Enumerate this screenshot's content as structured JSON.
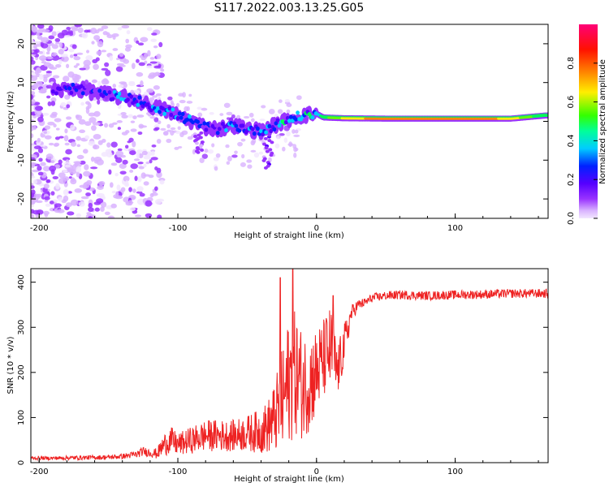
{
  "figure": {
    "title": "S117.2022.003.13.25.G05"
  },
  "chart_data": [
    {
      "type": "heatmap",
      "title": "S117.2022.003.13.25.G05",
      "xlabel": "Height of straight line (km)",
      "ylabel": "Frequency (Hz)",
      "xlim": [
        -206,
        167
      ],
      "ylim": [
        -25,
        25
      ],
      "xticks": [
        -200,
        -100,
        0,
        100
      ],
      "xtick_labels": [
        "-200",
        "-100",
        "0",
        "100"
      ],
      "yticks": [
        -20,
        -10,
        0,
        10,
        20
      ],
      "ytick_labels": [
        "-20",
        "-10",
        "0",
        "10",
        "20"
      ],
      "colorbar": {
        "label": "Normalized spectral amplitude",
        "range": [
          0,
          1
        ],
        "ticks": [
          0,
          0.2,
          0.4,
          0.6,
          0.8
        ],
        "tick_labels": [
          "0.0",
          "0.2",
          "0.4",
          "0.6",
          "0.8"
        ],
        "colormap": [
          "#f2e6ff",
          "#d9b3ff",
          "#9933ff",
          "#5500ff",
          "#0022ff",
          "#00ccff",
          "#00ff55",
          "#66ff00",
          "#ffee00",
          "#ff8800",
          "#ff2200",
          "#ff0066"
        ]
      },
      "ridge": {
        "description": "dominant frequency track vs height",
        "points": [
          {
            "x": -185,
            "y": 8,
            "amp": 0.3
          },
          {
            "x": -175,
            "y": 8.5,
            "amp": 0.35
          },
          {
            "x": -160,
            "y": 7.5,
            "amp": 0.3
          },
          {
            "x": -145,
            "y": 6.5,
            "amp": 0.35
          },
          {
            "x": -130,
            "y": 5.5,
            "amp": 0.35
          },
          {
            "x": -120,
            "y": 4,
            "amp": 0.35
          },
          {
            "x": -110,
            "y": 3,
            "amp": 0.4
          },
          {
            "x": -100,
            "y": 1.5,
            "amp": 0.35
          },
          {
            "x": -90,
            "y": 0,
            "amp": 0.35
          },
          {
            "x": -80,
            "y": -1.5,
            "amp": 0.3
          },
          {
            "x": -70,
            "y": -2,
            "amp": 0.3
          },
          {
            "x": -60,
            "y": -1,
            "amp": 0.4
          },
          {
            "x": -50,
            "y": -2,
            "amp": 0.35
          },
          {
            "x": -40,
            "y": -2.5,
            "amp": 0.35
          },
          {
            "x": -30,
            "y": -1,
            "amp": 0.4
          },
          {
            "x": -20,
            "y": 0.5,
            "amp": 0.45
          },
          {
            "x": -10,
            "y": 1.5,
            "amp": 0.45
          },
          {
            "x": 0,
            "y": 2,
            "amp": 0.45
          },
          {
            "x": 5,
            "y": 1,
            "amp": 0.55
          },
          {
            "x": 20,
            "y": 0.8,
            "amp": 0.7
          },
          {
            "x": 50,
            "y": 0.7,
            "amp": 0.85
          },
          {
            "x": 100,
            "y": 0.7,
            "amp": 0.85
          },
          {
            "x": 140,
            "y": 0.7,
            "amp": 0.75
          },
          {
            "x": 165,
            "y": 1.5,
            "amp": 0.5
          }
        ]
      }
    },
    {
      "type": "line",
      "xlabel": "Height of straight line (km)",
      "ylabel": "SNR (10 * v/v)",
      "xlim": [
        -206,
        167
      ],
      "ylim": [
        0,
        430
      ],
      "xticks": [
        -200,
        -100,
        0,
        100
      ],
      "xtick_labels": [
        "-200",
        "-100",
        "0",
        "100"
      ],
      "yticks": [
        0,
        100,
        200,
        300,
        400
      ],
      "ytick_labels": [
        "0",
        "100",
        "200",
        "300",
        "400"
      ],
      "series": [
        {
          "name": "SNR",
          "color": "#ee2222",
          "x": [
            -206,
            -190,
            -170,
            -150,
            -140,
            -130,
            -125,
            -120,
            -115,
            -110,
            -105,
            -100,
            -90,
            -80,
            -70,
            -60,
            -50,
            -40,
            -35,
            -30,
            -25,
            -20,
            -15,
            -10,
            -5,
            0,
            5,
            10,
            15,
            20,
            25,
            30,
            35,
            40,
            50,
            60,
            80,
            100,
            120,
            140,
            167
          ],
          "mean": [
            10,
            10,
            11,
            12,
            14,
            18,
            25,
            22,
            20,
            40,
            50,
            40,
            50,
            60,
            60,
            60,
            65,
            70,
            80,
            100,
            130,
            180,
            200,
            170,
            180,
            200,
            230,
            250,
            200,
            260,
            330,
            350,
            355,
            365,
            370,
            372,
            370,
            372,
            373,
            375,
            375
          ],
          "spread": [
            4,
            4,
            5,
            5,
            6,
            8,
            10,
            10,
            12,
            25,
            30,
            25,
            30,
            35,
            35,
            35,
            40,
            50,
            60,
            80,
            120,
            140,
            140,
            120,
            110,
            100,
            90,
            100,
            60,
            50,
            20,
            12,
            10,
            10,
            10,
            10,
            10,
            10,
            10,
            10,
            10
          ],
          "peaks": [
            {
              "x": -17,
              "y": 430
            },
            {
              "x": -26,
              "y": 410
            },
            {
              "x": 12,
              "y": 370
            }
          ]
        }
      ]
    }
  ]
}
